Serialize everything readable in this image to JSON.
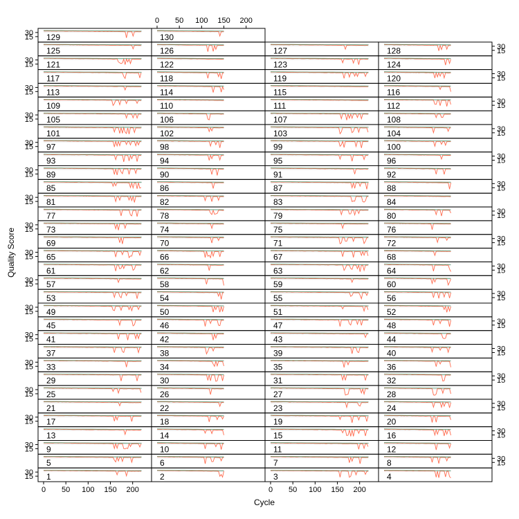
{
  "chart_data": {
    "type": "line",
    "title": "",
    "xlabel": "Cycle",
    "ylabel": "Quality Score",
    "x_ticks": [
      0,
      50,
      100,
      150,
      200
    ],
    "y_ticks": [
      15,
      30
    ],
    "xlim": [
      0,
      230
    ],
    "ylim": [
      0,
      40
    ],
    "layout": {
      "columns": 4,
      "rows": 33
    },
    "panels_left_pair_max_cycle": 220,
    "panels_right_pair_max_cycle": 150,
    "panel_ids": [
      "1",
      "2",
      "3",
      "4",
      "5",
      "6",
      "7",
      "8",
      "9",
      "10",
      "11",
      "12",
      "13",
      "14",
      "15",
      "16",
      "17",
      "18",
      "19",
      "20",
      "21",
      "22",
      "23",
      "24",
      "25",
      "26",
      "27",
      "28",
      "29",
      "30",
      "31",
      "32",
      "33",
      "34",
      "35",
      "36",
      "37",
      "38",
      "39",
      "40",
      "41",
      "42",
      "43",
      "44",
      "45",
      "46",
      "47",
      "48",
      "49",
      "50",
      "51",
      "52",
      "53",
      "54",
      "55",
      "56",
      "57",
      "58",
      "59",
      "60",
      "61",
      "62",
      "63",
      "64",
      "65",
      "66",
      "67",
      "68",
      "69",
      "70",
      "71",
      "72",
      "73",
      "74",
      "75",
      "76",
      "77",
      "78",
      "79",
      "80",
      "81",
      "82",
      "83",
      "84",
      "85",
      "86",
      "87",
      "88",
      "89",
      "90",
      "91",
      "92",
      "93",
      "94",
      "95",
      "96",
      "97",
      "98",
      "99",
      "100",
      "101",
      "102",
      "103",
      "104",
      "105",
      "106",
      "107",
      "108",
      "109",
      "110",
      "111",
      "112",
      "113",
      "114",
      "115",
      "116",
      "117",
      "118",
      "119",
      "120",
      "121",
      "122",
      "123",
      "124",
      "125",
      "126",
      "127",
      "128",
      "129",
      "130"
    ],
    "series": [
      {
        "name": "",
        "color": "#ff6a4d",
        "values_typical": [
          36,
          36,
          35,
          35,
          34,
          33,
          32
        ]
      },
      {
        "name": "",
        "color": "#2e8b57",
        "values_typical": [
          37,
          37,
          36,
          36,
          35,
          34,
          33
        ]
      }
    ],
    "grid": false,
    "legend": "none"
  },
  "colors": {
    "quality_line": "#ff6a4d",
    "median_line": "#2e8b57",
    "heat_background": "#dcdcdc",
    "frame": "#000000"
  }
}
